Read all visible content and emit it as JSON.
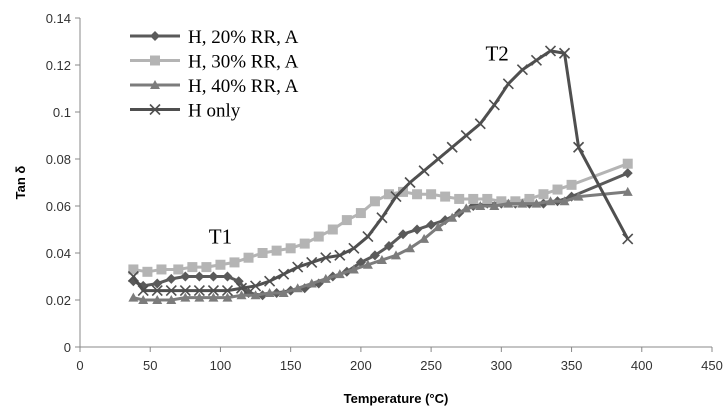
{
  "chart_data": {
    "type": "line",
    "xlabel": "Temperature (°C)",
    "ylabel": "Tan δ",
    "xlim": [
      0,
      450
    ],
    "ylim": [
      0,
      0.14
    ],
    "x_ticks": [
      "0",
      "50",
      "100",
      "150",
      "200",
      "250",
      "300",
      "350",
      "400",
      "450"
    ],
    "y_ticks": [
      "0",
      "0.02",
      "0.04",
      "0.06",
      "0.08",
      "0.1",
      "0.12",
      "0.14"
    ],
    "grid": false,
    "legend_position": "top-left",
    "annotations": [
      {
        "text": "T1",
        "x": 100,
        "y": 0.044
      },
      {
        "text": "T2",
        "x": 297,
        "y": 0.122
      }
    ],
    "series": [
      {
        "name": "H, 20% RR, A",
        "color": "#5a5a5a",
        "marker": "diamond",
        "x": [
          38,
          45,
          55,
          65,
          75,
          85,
          95,
          105,
          113,
          120,
          130,
          140,
          150,
          160,
          170,
          180,
          190,
          200,
          210,
          220,
          230,
          240,
          250,
          260,
          270,
          280,
          290,
          300,
          310,
          320,
          330,
          340,
          350,
          390
        ],
        "y": [
          0.028,
          0.026,
          0.027,
          0.029,
          0.03,
          0.03,
          0.03,
          0.03,
          0.028,
          0.023,
          0.022,
          0.023,
          0.024,
          0.025,
          0.027,
          0.03,
          0.032,
          0.036,
          0.039,
          0.043,
          0.048,
          0.05,
          0.052,
          0.054,
          0.057,
          0.06,
          0.061,
          0.061,
          0.061,
          0.061,
          0.061,
          0.062,
          0.064,
          0.074
        ]
      },
      {
        "name": "H, 30% RR, A",
        "color": "#b4b4b4",
        "marker": "square",
        "x": [
          38,
          48,
          58,
          70,
          80,
          90,
          100,
          110,
          120,
          130,
          140,
          150,
          160,
          170,
          180,
          190,
          200,
          210,
          220,
          230,
          240,
          250,
          260,
          270,
          280,
          290,
          300,
          310,
          320,
          330,
          340,
          350,
          390
        ],
        "y": [
          0.033,
          0.032,
          0.033,
          0.033,
          0.034,
          0.034,
          0.035,
          0.036,
          0.038,
          0.04,
          0.041,
          0.042,
          0.044,
          0.047,
          0.05,
          0.054,
          0.057,
          0.062,
          0.065,
          0.066,
          0.065,
          0.065,
          0.064,
          0.063,
          0.063,
          0.063,
          0.062,
          0.062,
          0.063,
          0.065,
          0.067,
          0.069,
          0.078
        ]
      },
      {
        "name": "H, 40% RR, A",
        "color": "#7c7c7c",
        "marker": "triangle",
        "x": [
          38,
          45,
          55,
          65,
          75,
          85,
          95,
          105,
          115,
          125,
          135,
          145,
          155,
          165,
          175,
          185,
          195,
          205,
          215,
          225,
          235,
          245,
          255,
          265,
          275,
          285,
          295,
          305,
          315,
          325,
          335,
          345,
          355,
          390
        ],
        "y": [
          0.021,
          0.02,
          0.02,
          0.02,
          0.021,
          0.021,
          0.021,
          0.021,
          0.022,
          0.022,
          0.023,
          0.023,
          0.025,
          0.027,
          0.029,
          0.031,
          0.033,
          0.035,
          0.037,
          0.039,
          0.042,
          0.046,
          0.051,
          0.055,
          0.059,
          0.06,
          0.06,
          0.061,
          0.061,
          0.061,
          0.062,
          0.062,
          0.064,
          0.066
        ]
      },
      {
        "name": "H only",
        "color": "#4f4f4f",
        "marker": "x",
        "x": [
          38,
          45,
          55,
          65,
          75,
          85,
          95,
          105,
          115,
          125,
          135,
          145,
          155,
          165,
          175,
          185,
          195,
          205,
          215,
          225,
          235,
          245,
          255,
          265,
          275,
          285,
          295,
          305,
          315,
          325,
          335,
          345,
          355,
          390
        ],
        "y": [
          0.03,
          0.024,
          0.024,
          0.024,
          0.024,
          0.024,
          0.024,
          0.024,
          0.025,
          0.026,
          0.028,
          0.031,
          0.034,
          0.036,
          0.038,
          0.039,
          0.042,
          0.047,
          0.055,
          0.064,
          0.07,
          0.075,
          0.08,
          0.085,
          0.09,
          0.095,
          0.103,
          0.112,
          0.118,
          0.122,
          0.126,
          0.125,
          0.085,
          0.046
        ]
      }
    ]
  }
}
